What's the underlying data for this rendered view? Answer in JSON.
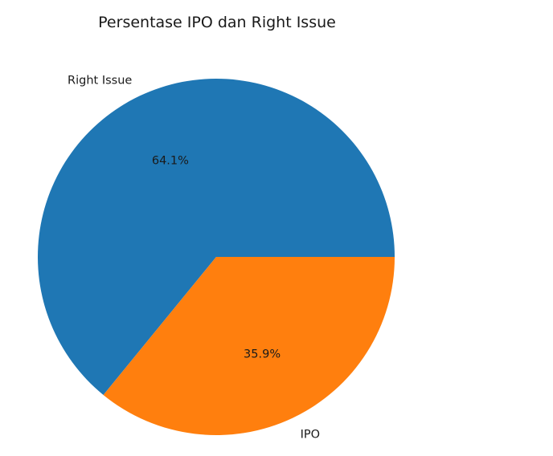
{
  "chart_data": {
    "type": "pie",
    "title": "Persentase IPO dan Right Issue",
    "start_angle_deg": 0,
    "direction": "counterclockwise",
    "slices": [
      {
        "label": "Right Issue",
        "value": 64.1,
        "pct_label": "64.1%",
        "color": "#1f77b4"
      },
      {
        "label": "IPO",
        "value": 35.9,
        "pct_label": "35.9%",
        "color": "#ff7f0e"
      }
    ]
  }
}
